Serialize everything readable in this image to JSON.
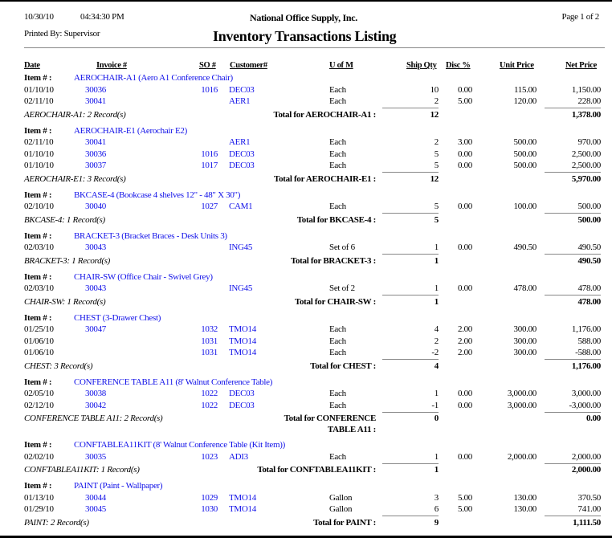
{
  "header": {
    "date": "10/30/10",
    "time": "04:34:30 PM",
    "company": "National Office Supply, Inc.",
    "page": "Page 1 of  2",
    "printed_by": "Printed By: Supervisor",
    "title": "Inventory Transactions Listing"
  },
  "columns": {
    "date": "Date",
    "invoice": "Invoice #",
    "so": "SO #",
    "customer": "Customer#",
    "uofm": "U of M",
    "ship_qty": "Ship Qty",
    "disc": "Disc %",
    "unit_price": "Unit Price",
    "net_price": "Net Price"
  },
  "item_label": "Item # :",
  "groups": [
    {
      "item": "AEROCHAIR-A1 (Aero A1 Conference Chair)",
      "summary": "AEROCHAIR-A1: 2 Record(s)",
      "total_label": "Total for AEROCHAIR-A1 :",
      "total_qty": "12",
      "total_net": "1,378.00",
      "rows": [
        {
          "date": "01/10/10",
          "invoice": "30036",
          "so": "1016",
          "customer": "DEC03",
          "uofm": "Each",
          "qty": "10",
          "disc": "0.00",
          "unit": "115.00",
          "net": "1,150.00"
        },
        {
          "date": "02/11/10",
          "invoice": "30041",
          "so": "",
          "customer": "AER1",
          "uofm": "Each",
          "qty": "2",
          "disc": "5.00",
          "unit": "120.00",
          "net": "228.00"
        }
      ]
    },
    {
      "item": "AEROCHAIR-E1 (Aerochair E2)",
      "summary": "AEROCHAIR-E1: 3 Record(s)",
      "total_label": "Total for AEROCHAIR-E1 :",
      "total_qty": "12",
      "total_net": "5,970.00",
      "rows": [
        {
          "date": "02/11/10",
          "invoice": "30041",
          "so": "",
          "customer": "AER1",
          "uofm": "Each",
          "qty": "2",
          "disc": "3.00",
          "unit": "500.00",
          "net": "970.00"
        },
        {
          "date": "01/10/10",
          "invoice": "30036",
          "so": "1016",
          "customer": "DEC03",
          "uofm": "Each",
          "qty": "5",
          "disc": "0.00",
          "unit": "500.00",
          "net": "2,500.00"
        },
        {
          "date": "01/10/10",
          "invoice": "30037",
          "so": "1017",
          "customer": "DEC03",
          "uofm": "Each",
          "qty": "5",
          "disc": "0.00",
          "unit": "500.00",
          "net": "2,500.00"
        }
      ]
    },
    {
      "item": "BKCASE-4 (Bookcase 4 shelves 12\" - 48\" X 30\")",
      "summary": "BKCASE-4: 1 Record(s)",
      "total_label": "Total for BKCASE-4 :",
      "total_qty": "5",
      "total_net": "500.00",
      "rows": [
        {
          "date": "02/10/10",
          "invoice": "30040",
          "so": "1027",
          "customer": "CAM1",
          "uofm": "Each",
          "qty": "5",
          "disc": "0.00",
          "unit": "100.00",
          "net": "500.00"
        }
      ]
    },
    {
      "item": "BRACKET-3 (Bracket Braces - Desk Units 3)",
      "summary": "BRACKET-3: 1 Record(s)",
      "total_label": "Total for BRACKET-3 :",
      "total_qty": "1",
      "total_net": "490.50",
      "rows": [
        {
          "date": "02/03/10",
          "invoice": "30043",
          "so": "",
          "customer": "ING45",
          "uofm": "Set of 6",
          "qty": "1",
          "disc": "0.00",
          "unit": "490.50",
          "net": "490.50"
        }
      ]
    },
    {
      "item": "CHAIR-SW (Office Chair - Swivel Grey)",
      "summary": "CHAIR-SW: 1 Record(s)",
      "total_label": "Total for CHAIR-SW :",
      "total_qty": "1",
      "total_net": "478.00",
      "rows": [
        {
          "date": "02/03/10",
          "invoice": "30043",
          "so": "",
          "customer": "ING45",
          "uofm": "Set of 2",
          "qty": "1",
          "disc": "0.00",
          "unit": "478.00",
          "net": "478.00"
        }
      ]
    },
    {
      "item": "CHEST (3-Drawer Chest)",
      "summary": "CHEST: 3 Record(s)",
      "total_label": "Total for CHEST :",
      "total_qty": "4",
      "total_net": "1,176.00",
      "rows": [
        {
          "date": "01/25/10",
          "invoice": "30047",
          "so": "1032",
          "customer": "TMO14",
          "uofm": "Each",
          "qty": "4",
          "disc": "2.00",
          "unit": "300.00",
          "net": "1,176.00"
        },
        {
          "date": "01/06/10",
          "invoice": "",
          "so": "1031",
          "customer": "TMO14",
          "uofm": "Each",
          "qty": "2",
          "disc": "2.00",
          "unit": "300.00",
          "net": "588.00"
        },
        {
          "date": "01/06/10",
          "invoice": "",
          "so": "1031",
          "customer": "TMO14",
          "uofm": "Each",
          "qty": "-2",
          "disc": "2.00",
          "unit": "300.00",
          "net": "-588.00"
        }
      ]
    },
    {
      "item": "CONFERENCE TABLE A11 (8' Walnut Conference Table)",
      "summary": "CONFERENCE TABLE A11: 2 Record(s)",
      "total_label": "Total for CONFERENCE TABLE A11 :",
      "total_qty": "0",
      "total_net": "0.00",
      "wrap": true,
      "rows": [
        {
          "date": "02/05/10",
          "invoice": "30038",
          "so": "1022",
          "customer": "DEC03",
          "uofm": "Each",
          "qty": "1",
          "disc": "0.00",
          "unit": "3,000.00",
          "net": "3,000.00"
        },
        {
          "date": "02/12/10",
          "invoice": "30042",
          "so": "1022",
          "customer": "DEC03",
          "uofm": "Each",
          "qty": "-1",
          "disc": "0.00",
          "unit": "3,000.00",
          "net": "-3,000.00"
        }
      ]
    },
    {
      "item": "CONFTABLEA11KIT (8' Walnut Conference Table (Kit Item))",
      "summary": "CONFTABLEA11KIT: 1 Record(s)",
      "total_label": "Total for CONFTABLEA11KIT :",
      "total_qty": "1",
      "total_net": "2,000.00",
      "rows": [
        {
          "date": "02/02/10",
          "invoice": "30035",
          "so": "1023",
          "customer": "ADI3",
          "uofm": "Each",
          "qty": "1",
          "disc": "0.00",
          "unit": "2,000.00",
          "net": "2,000.00"
        }
      ]
    },
    {
      "item": "PAINT (Paint - Wallpaper)",
      "summary": "PAINT: 2 Record(s)",
      "total_label": "Total for PAINT :",
      "total_qty": "9",
      "total_net": "1,111.50",
      "rows": [
        {
          "date": "01/13/10",
          "invoice": "30044",
          "so": "1029",
          "customer": "TMO14",
          "uofm": "Gallon",
          "qty": "3",
          "disc": "5.00",
          "unit": "130.00",
          "net": "370.50"
        },
        {
          "date": "01/29/10",
          "invoice": "30045",
          "so": "1030",
          "customer": "TMO14",
          "uofm": "Gallon",
          "qty": "6",
          "disc": "5.00",
          "unit": "130.00",
          "net": "741.00"
        }
      ]
    }
  ]
}
